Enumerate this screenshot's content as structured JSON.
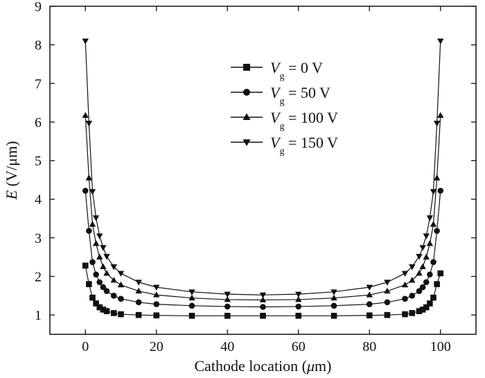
{
  "chart_data": {
    "type": "line",
    "xlabel": "Cathode location (μm)",
    "ylabel": "E (V/μm)",
    "ylabel_parts": {
      "var": "E",
      "unit": " (V/μm)"
    },
    "xlabel_parts": {
      "text": "Cathode location (",
      "mu": "μ",
      "unit": "m)"
    },
    "xlim": [
      -10,
      110
    ],
    "ylim": [
      0.5,
      9
    ],
    "xticks": [
      0,
      20,
      40,
      60,
      80,
      100
    ],
    "yticks": [
      1,
      2,
      3,
      4,
      5,
      6,
      7,
      8,
      9
    ],
    "grid": false,
    "legend_position": "top-center",
    "series": [
      {
        "name": "Vg = 0 V",
        "legend_var": "V",
        "legend_sub": "g",
        "legend_rest": " = 0 V",
        "marker": "square",
        "x": [
          0,
          1,
          2,
          3,
          4,
          5,
          6,
          8,
          10,
          15,
          20,
          30,
          40,
          50,
          60,
          70,
          80,
          85,
          90,
          92,
          94,
          95,
          96,
          97,
          98,
          99,
          100
        ],
        "values": [
          2.28,
          1.8,
          1.45,
          1.3,
          1.2,
          1.14,
          1.1,
          1.05,
          1.02,
          1.0,
          0.99,
          0.98,
          0.98,
          0.98,
          0.98,
          0.98,
          0.99,
          1.0,
          1.02,
          1.05,
          1.1,
          1.14,
          1.2,
          1.3,
          1.45,
          1.8,
          2.08
        ]
      },
      {
        "name": "Vg = 50 V",
        "legend_var": "V",
        "legend_sub": "g",
        "legend_rest": " = 50 V",
        "marker": "circle",
        "x": [
          0,
          1,
          2,
          3,
          4,
          5,
          6,
          8,
          10,
          15,
          20,
          30,
          40,
          50,
          60,
          70,
          80,
          85,
          90,
          92,
          94,
          95,
          96,
          97,
          98,
          99,
          100
        ],
        "values": [
          4.22,
          3.18,
          2.37,
          2.05,
          1.85,
          1.72,
          1.62,
          1.5,
          1.42,
          1.33,
          1.28,
          1.24,
          1.22,
          1.21,
          1.22,
          1.24,
          1.28,
          1.33,
          1.42,
          1.5,
          1.62,
          1.72,
          1.85,
          2.05,
          2.37,
          3.18,
          4.22
        ]
      },
      {
        "name": "Vg = 100 V",
        "legend_var": "V",
        "legend_sub": "g",
        "legend_rest": " = 100 V",
        "marker": "triangle-up",
        "x": [
          0,
          1,
          2,
          3,
          4,
          5,
          6,
          8,
          10,
          15,
          20,
          30,
          40,
          50,
          60,
          70,
          80,
          85,
          90,
          92,
          94,
          95,
          96,
          97,
          98,
          99,
          100
        ],
        "values": [
          6.17,
          4.55,
          3.35,
          2.85,
          2.5,
          2.25,
          2.08,
          1.9,
          1.78,
          1.62,
          1.52,
          1.44,
          1.4,
          1.39,
          1.4,
          1.44,
          1.52,
          1.62,
          1.78,
          1.9,
          2.08,
          2.25,
          2.5,
          2.85,
          3.35,
          4.55,
          6.17
        ]
      },
      {
        "name": "Vg = 150 V",
        "legend_var": "V",
        "legend_sub": "g",
        "legend_rest": " = 150 V",
        "marker": "triangle-down",
        "x": [
          0,
          1,
          2,
          3,
          4,
          5,
          6,
          8,
          10,
          15,
          20,
          30,
          40,
          50,
          60,
          70,
          80,
          85,
          90,
          92,
          94,
          95,
          96,
          97,
          98,
          99,
          100
        ],
        "values": [
          8.1,
          5.97,
          4.2,
          3.52,
          3.05,
          2.75,
          2.52,
          2.25,
          2.08,
          1.85,
          1.72,
          1.6,
          1.54,
          1.52,
          1.54,
          1.6,
          1.72,
          1.85,
          2.08,
          2.25,
          2.52,
          2.75,
          3.05,
          3.52,
          4.2,
          5.97,
          8.1
        ]
      }
    ]
  }
}
